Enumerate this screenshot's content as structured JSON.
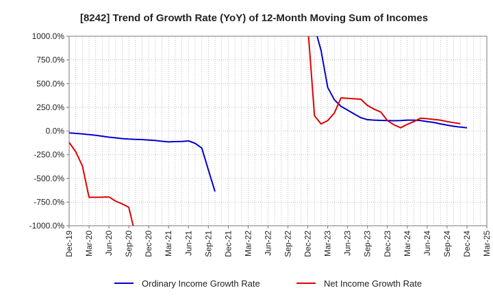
{
  "chart_data": {
    "type": "line",
    "title": "[8242]  Trend of Growth Rate (YoY) of 12-Month Moving Sum of Incomes",
    "xlabel": "",
    "ylabel": "",
    "ylim": [
      -1000,
      1000
    ],
    "yticks": [
      "1000.0%",
      "750.0%",
      "500.0%",
      "250.0%",
      "0.0%",
      "-250.0%",
      "-500.0%",
      "-750.0%",
      "-1000.0%"
    ],
    "xticks": [
      "Dec-19",
      "Mar-20",
      "Jun-20",
      "Sep-20",
      "Dec-20",
      "Mar-21",
      "Jun-21",
      "Sep-21",
      "Dec-21",
      "Mar-22",
      "Jun-22",
      "Sep-22",
      "Dec-22",
      "Mar-23",
      "Jun-23",
      "Sep-23",
      "Dec-23",
      "Mar-24",
      "Jun-24",
      "Sep-24",
      "Dec-24",
      "Mar-25"
    ],
    "grid": true,
    "legend_position": "bottom",
    "series": [
      {
        "name": "Ordinary Income Growth Rate",
        "color": "#0000cc",
        "points": [
          [
            "Dec-19",
            -20
          ],
          [
            "Jan-20",
            -25
          ],
          [
            "Feb-20",
            -30
          ],
          [
            "Mar-20",
            -38
          ],
          [
            "Apr-20",
            -45
          ],
          [
            "May-20",
            -55
          ],
          [
            "Jun-20",
            -65
          ],
          [
            "Jul-20",
            -72
          ],
          [
            "Aug-20",
            -80
          ],
          [
            "Sep-20",
            -85
          ],
          [
            "Oct-20",
            -88
          ],
          [
            "Nov-20",
            -90
          ],
          [
            "Dec-20",
            -95
          ],
          [
            "Jan-21",
            -100
          ],
          [
            "Feb-21",
            -108
          ],
          [
            "Mar-21",
            -115
          ],
          [
            "Apr-21",
            -112
          ],
          [
            "May-21",
            -110
          ],
          [
            "Jun-21",
            -105
          ],
          [
            "Jul-21",
            -130
          ],
          [
            "Aug-21",
            -180
          ],
          [
            "Sep-21",
            -410
          ],
          [
            "Oct-21",
            -640
          ]
        ]
      },
      {
        "name": "Ordinary Income Growth Rate",
        "color": "#0000cc",
        "points": [
          [
            "Jan-23",
            1100
          ],
          [
            "Feb-23",
            850
          ],
          [
            "Mar-23",
            460
          ],
          [
            "Apr-23",
            330
          ],
          [
            "May-23",
            260
          ],
          [
            "Jun-23",
            220
          ],
          [
            "Jul-23",
            180
          ],
          [
            "Aug-23",
            140
          ],
          [
            "Sep-23",
            120
          ],
          [
            "Oct-23",
            115
          ],
          [
            "Nov-23",
            112
          ],
          [
            "Dec-23",
            110
          ],
          [
            "Jan-24",
            108
          ],
          [
            "Feb-24",
            110
          ],
          [
            "Mar-24",
            115
          ],
          [
            "Apr-24",
            115
          ],
          [
            "May-24",
            110
          ],
          [
            "Jun-24",
            100
          ],
          [
            "Jul-24",
            90
          ],
          [
            "Aug-24",
            75
          ],
          [
            "Sep-24",
            62
          ],
          [
            "Oct-24",
            50
          ],
          [
            "Nov-24",
            42
          ],
          [
            "Dec-24",
            35
          ]
        ]
      },
      {
        "name": "Net Income Growth Rate",
        "color": "#dd0000",
        "points": [
          [
            "Dec-19",
            -120
          ],
          [
            "Jan-20",
            -220
          ],
          [
            "Feb-20",
            -370
          ],
          [
            "Mar-20",
            -700
          ],
          [
            "Apr-20",
            -700
          ],
          [
            "May-20",
            -698
          ],
          [
            "Jun-20",
            -695
          ],
          [
            "Jul-20",
            -740
          ],
          [
            "Aug-20",
            -770
          ],
          [
            "Sep-20",
            -805
          ],
          [
            "Oct-20",
            -1100
          ]
        ]
      },
      {
        "name": "Net Income Growth Rate",
        "color": "#dd0000",
        "points": [
          [
            "Dec-22",
            1100
          ],
          [
            "Jan-23",
            160
          ],
          [
            "Feb-23",
            75
          ],
          [
            "Mar-23",
            110
          ],
          [
            "Apr-23",
            190
          ],
          [
            "May-23",
            350
          ],
          [
            "Jun-23",
            345
          ],
          [
            "Jul-23",
            340
          ],
          [
            "Aug-23",
            335
          ],
          [
            "Sep-23",
            270
          ],
          [
            "Oct-23",
            230
          ],
          [
            "Nov-23",
            200
          ],
          [
            "Dec-23",
            110
          ],
          [
            "Jan-24",
            65
          ],
          [
            "Feb-24",
            35
          ],
          [
            "Mar-24",
            70
          ],
          [
            "Apr-24",
            100
          ],
          [
            "May-24",
            135
          ],
          [
            "Jun-24",
            130
          ],
          [
            "Jul-24",
            122
          ],
          [
            "Aug-24",
            115
          ],
          [
            "Sep-24",
            100
          ],
          [
            "Oct-24",
            88
          ],
          [
            "Nov-24",
            78
          ]
        ]
      }
    ],
    "legend": [
      {
        "label": "Ordinary Income Growth Rate",
        "color": "#0000cc"
      },
      {
        "label": "Net Income Growth Rate",
        "color": "#dd0000"
      }
    ]
  }
}
